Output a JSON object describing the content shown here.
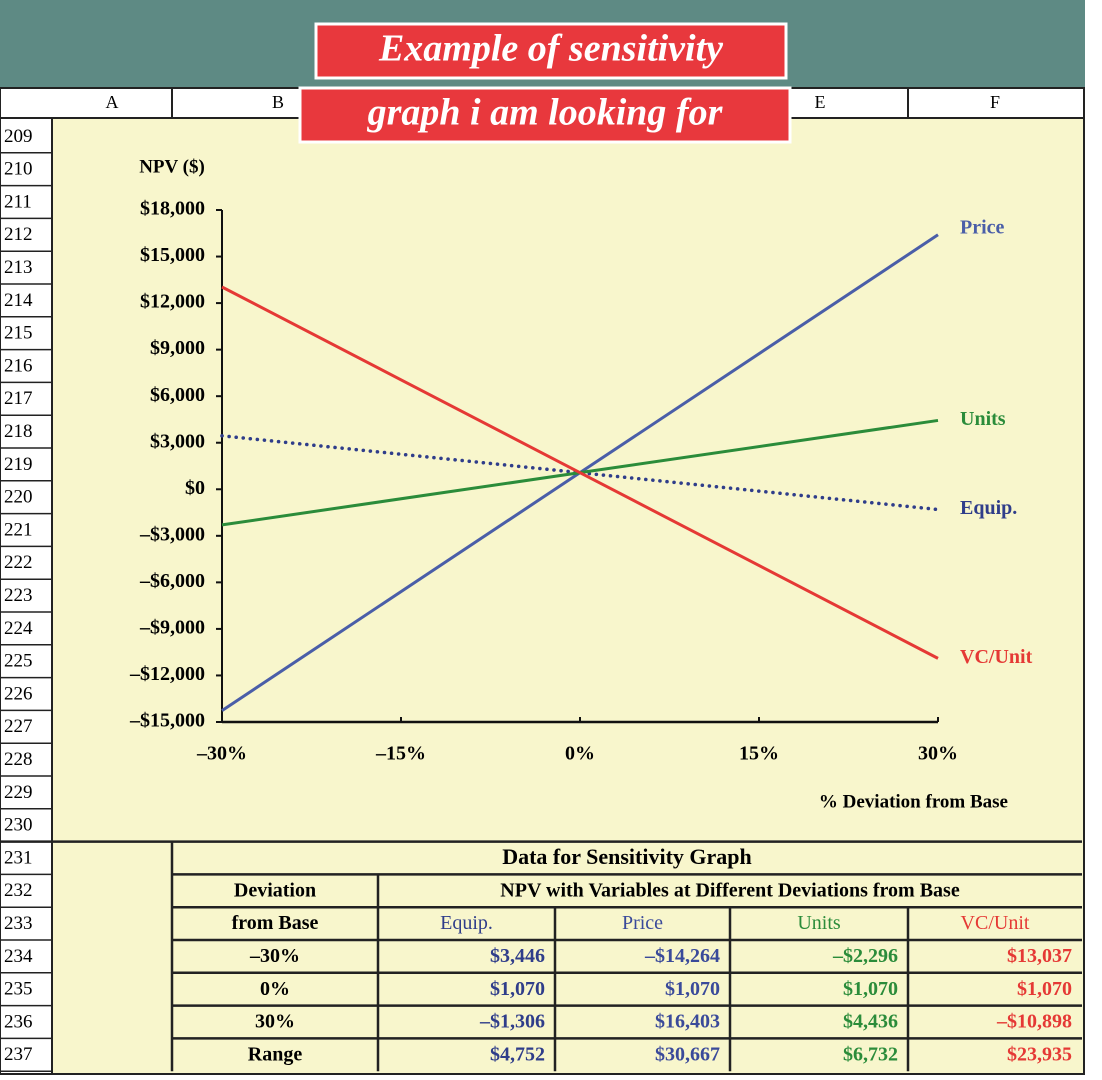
{
  "banner": [
    "Example of sensitivity",
    "graph i am looking for"
  ],
  "column_headers": [
    "A",
    "B",
    "E",
    "F"
  ],
  "row_numbers": [
    209,
    210,
    211,
    212,
    213,
    214,
    215,
    216,
    217,
    218,
    219,
    220,
    221,
    222,
    223,
    224,
    225,
    226,
    227,
    228,
    229,
    230,
    231,
    232,
    233,
    234,
    235,
    236,
    237
  ],
  "chart_data": {
    "type": "line",
    "y_label": "NPV ($)",
    "x_label": "% Deviation from Base",
    "x": [
      -30,
      0,
      30
    ],
    "xlim": [
      -30,
      30
    ],
    "xticks": [
      {
        "value": -30,
        "label": "–30%"
      },
      {
        "value": -15,
        "label": "–15%"
      },
      {
        "value": 0,
        "label": "0%"
      },
      {
        "value": 15,
        "label": "15%"
      },
      {
        "value": 30,
        "label": "30%"
      }
    ],
    "ylim": [
      -15000,
      18000
    ],
    "yticks": [
      {
        "value": 18000,
        "label": "$18,000"
      },
      {
        "value": 15000,
        "label": "$15,000"
      },
      {
        "value": 12000,
        "label": "$12,000"
      },
      {
        "value": 9000,
        "label": "$9,000"
      },
      {
        "value": 6000,
        "label": "$6,000"
      },
      {
        "value": 3000,
        "label": "$3,000"
      },
      {
        "value": 0,
        "label": "$0"
      },
      {
        "value": -3000,
        "label": "–$3,000"
      },
      {
        "value": -6000,
        "label": "–$6,000"
      },
      {
        "value": -9000,
        "label": "–$9,000"
      },
      {
        "value": -12000,
        "label": "–$12,000"
      },
      {
        "value": -15000,
        "label": "–$15,000"
      }
    ],
    "series": [
      {
        "name": "Equip.",
        "color": "#2f3d8a",
        "style": "dotted",
        "values": [
          3446,
          1070,
          -1306
        ]
      },
      {
        "name": "Price",
        "color": "#4a5ea8",
        "style": "solid",
        "values": [
          -14264,
          1070,
          16403
        ]
      },
      {
        "name": "Units",
        "color": "#2b8c3a",
        "style": "solid",
        "values": [
          -2296,
          1070,
          4436
        ]
      },
      {
        "name": "VC/Unit",
        "color": "#e53935",
        "style": "solid",
        "values": [
          13037,
          1070,
          -10898
        ]
      }
    ]
  },
  "table": {
    "title": "Data for Sensitivity Graph",
    "header_left": [
      "Deviation",
      "from Base"
    ],
    "header_span": "NPV with Variables at Different Deviations from Base",
    "columns": [
      "Equip.",
      "Price",
      "Units",
      "VC/Unit"
    ],
    "rows": [
      [
        "–30%",
        "$3,446",
        "–$14,264",
        "–$2,296",
        "$13,037"
      ],
      [
        "0%",
        "$1,070",
        "$1,070",
        "$1,070",
        "$1,070"
      ],
      [
        "30%",
        "–$1,306",
        "$16,403",
        "$4,436",
        "–$10,898"
      ],
      [
        "Range",
        "$4,752",
        "$30,667",
        "$6,732",
        "$23,935"
      ]
    ]
  }
}
